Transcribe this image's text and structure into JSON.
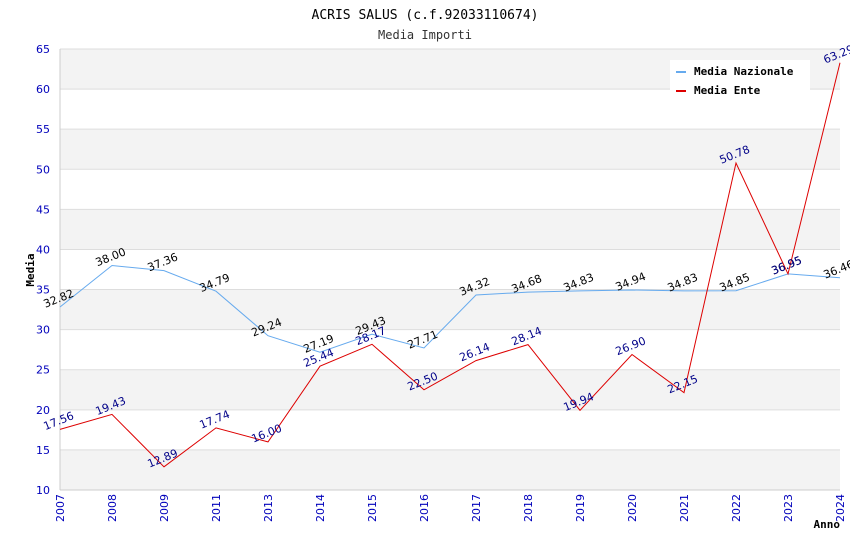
{
  "chart_data": {
    "type": "line",
    "title": "ACRIS SALUS (c.f.92033110674)",
    "subtitle": "Media Importi",
    "xlabel": "Anno",
    "ylabel": "Media",
    "ylim": [
      10,
      65
    ],
    "yticks": [
      10,
      15,
      20,
      25,
      30,
      35,
      40,
      45,
      50,
      55,
      60,
      65
    ],
    "categories": [
      "2007",
      "2008",
      "2009",
      "2011",
      "2013",
      "2014",
      "2015",
      "2016",
      "2017",
      "2018",
      "2019",
      "2020",
      "2021",
      "2022",
      "2023",
      "2024"
    ],
    "grid": true,
    "legend_position": "top-right",
    "series": [
      {
        "name": "Media Nazionale",
        "color": "#66aaee",
        "label_color": "#000000",
        "values": [
          32.82,
          38.0,
          37.36,
          34.79,
          29.24,
          27.19,
          29.43,
          27.71,
          34.32,
          34.68,
          34.83,
          34.94,
          34.83,
          34.85,
          36.95,
          36.46
        ],
        "labels": [
          "32.82",
          "38.00",
          "37.36",
          "34.79",
          "29.24",
          "27.19",
          "29.43",
          "27.71",
          "34.32",
          "34.68",
          "34.83",
          "34.94",
          "34.83",
          "34.85",
          "36.95",
          "36.46"
        ]
      },
      {
        "name": "Media Ente",
        "color": "#dd0000",
        "label_color": "#000088",
        "values": [
          17.56,
          19.43,
          12.89,
          17.74,
          16.0,
          25.44,
          28.17,
          22.5,
          26.14,
          28.14,
          19.94,
          26.9,
          22.15,
          50.78,
          36.95,
          63.29
        ],
        "labels": [
          "17.56",
          "19.43",
          "12.89",
          "17.74",
          "16.00",
          "25.44",
          "28.17",
          "22.50",
          "26.14",
          "28.14",
          "19.94",
          "26.90",
          "22.15",
          "50.78",
          "36.95",
          "63.29"
        ]
      }
    ]
  }
}
